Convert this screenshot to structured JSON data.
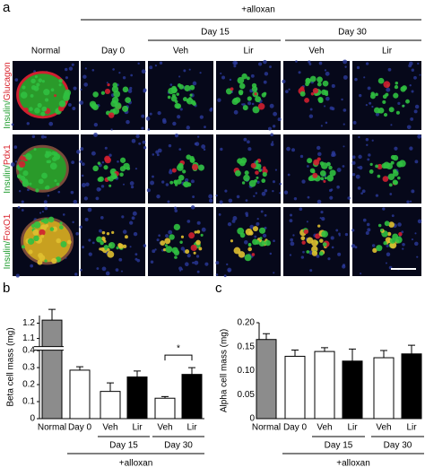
{
  "panel_a": {
    "label": "a",
    "treatment": "+alloxan",
    "groups": [
      "Day 15",
      "Day 30"
    ],
    "columns": [
      "Normal",
      "Day 0",
      "Veh",
      "Lir",
      "Veh",
      "Lir"
    ],
    "rows": [
      [
        "Insulin/",
        "Glucagon"
      ],
      [
        "Insulin/",
        "Pdx1"
      ],
      [
        "Insulin/",
        "FoxO1"
      ]
    ]
  },
  "chart_data": [
    {
      "type": "bar",
      "panel": "b",
      "y_label": "Beta cell mass (mg)",
      "categories": [
        "Normal",
        "Day 0",
        "Veh",
        "Lir",
        "Veh",
        "Lir"
      ],
      "values": [
        1.22,
        0.285,
        0.16,
        0.245,
        0.12,
        0.26
      ],
      "errors": [
        0.07,
        0.02,
        0.05,
        0.035,
        0.01,
        0.04
      ],
      "colors": [
        "#8c8c8c",
        "#ffffff",
        "#ffffff",
        "#000000",
        "#ffffff",
        "#000000"
      ],
      "ylim": [
        0,
        1.25
      ],
      "axis_break": [
        0.4,
        1.05
      ],
      "yticks": [
        0,
        0.1,
        0.2,
        0.3,
        0.4,
        1.1,
        1.2
      ],
      "group_labels": [
        "Day 15",
        "Day 30"
      ],
      "bracket_label": "+alloxan",
      "significance": "*"
    },
    {
      "type": "bar",
      "panel": "c",
      "y_label": "Alpha cell mass (mg)",
      "categories": [
        "Normal",
        "Day 0",
        "Veh",
        "Lir",
        "Veh",
        "Lir"
      ],
      "values": [
        0.165,
        0.13,
        0.14,
        0.12,
        0.127,
        0.135
      ],
      "errors": [
        0.012,
        0.013,
        0.008,
        0.025,
        0.015,
        0.018
      ],
      "colors": [
        "#8c8c8c",
        "#ffffff",
        "#ffffff",
        "#000000",
        "#ffffff",
        "#000000"
      ],
      "ylim": [
        0,
        0.2
      ],
      "yticks": [
        0,
        0.05,
        {
          "value": 0.1,
          "label": "0.10"
        },
        0.15,
        {
          "value": 0.2,
          "label": "0.20"
        }
      ],
      "group_labels": [
        "Day 15",
        "Day 30"
      ],
      "bracket_label": "+alloxan"
    }
  ]
}
